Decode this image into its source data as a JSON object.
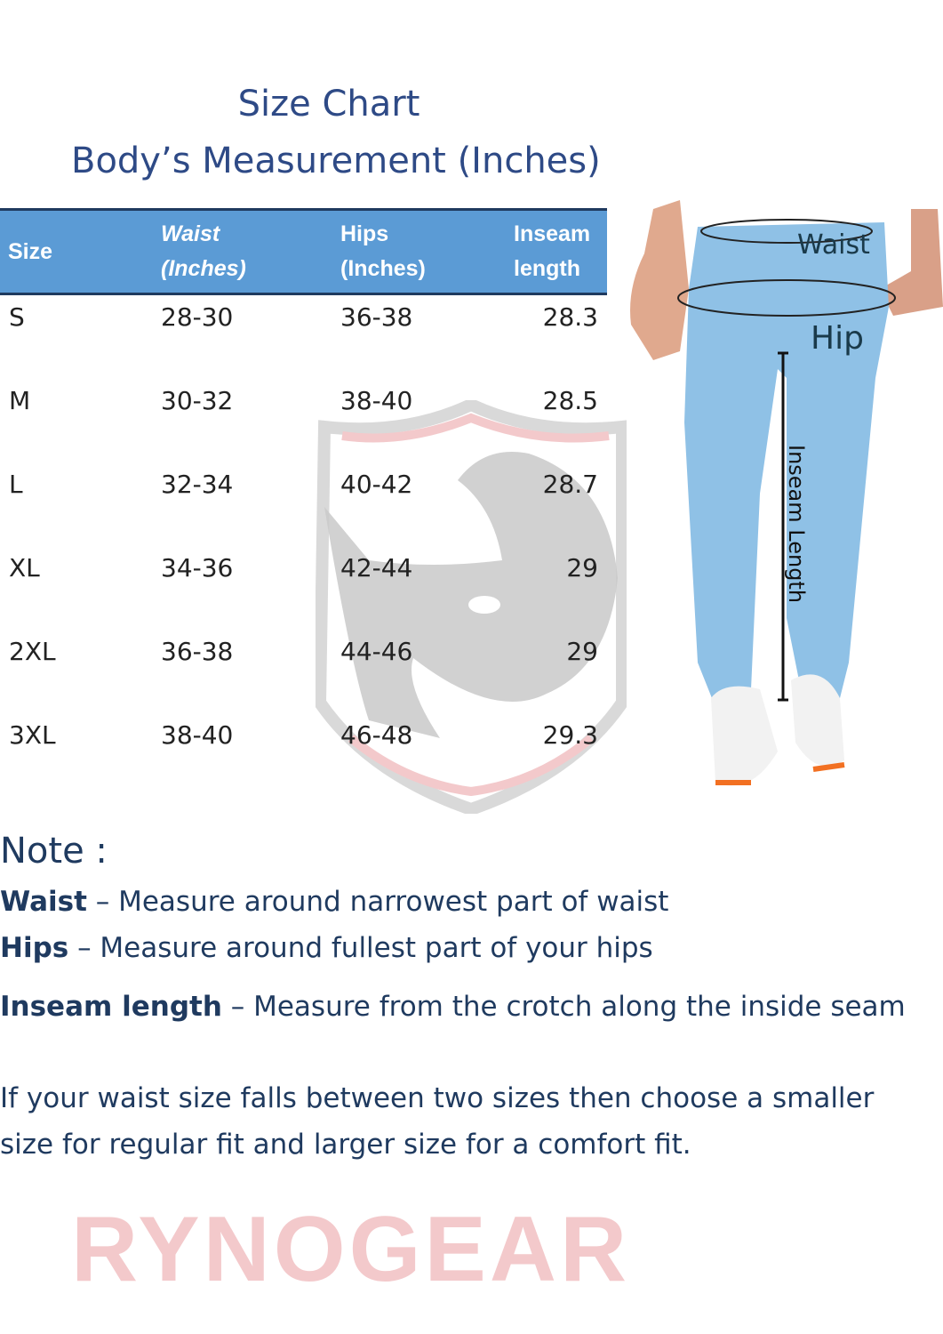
{
  "title": "Size Chart",
  "subtitle": "Body’s Measurement (Inches)",
  "colors": {
    "header_bg": "#5b9bd5",
    "text": "#1f3a5f",
    "title": "#2e4a86",
    "watermark": "#f3c9cb"
  },
  "watermark": {
    "brand": "RYNOGEAR",
    "icon": "rhino-shield-icon"
  },
  "table": {
    "headers": {
      "size": "Size",
      "waist_1": "Waist",
      "waist_2": "(Inches)",
      "hips_1": "Hips",
      "hips_2": "(Inches)",
      "inseam_1": "Inseam",
      "inseam_2": "length"
    },
    "rows": [
      {
        "size": "S",
        "waist": "28-30",
        "hips": "36-38",
        "inseam": "28.3"
      },
      {
        "size": "M",
        "waist": "30-32",
        "hips": "38-40",
        "inseam": "28.5"
      },
      {
        "size": "L",
        "waist": "32-34",
        "hips": "40-42",
        "inseam": "28.7"
      },
      {
        "size": "XL",
        "waist": "34-36",
        "hips": "42-44",
        "inseam": "29"
      },
      {
        "size": "2XL",
        "waist": "36-38",
        "hips": "44-46",
        "inseam": "29"
      },
      {
        "size": "3XL",
        "waist": "38-40",
        "hips": "46-48",
        "inseam": "29.3"
      }
    ]
  },
  "diagram": {
    "waist": "Waist",
    "hip": "Hip",
    "inseam": "Inseam Length"
  },
  "notes": {
    "heading": "Note :",
    "items": [
      {
        "term": "Waist",
        "text": " – Measure around narrowest part of waist"
      },
      {
        "term": "Hips",
        "text": " – Measure around fullest part of your hips"
      },
      {
        "term": "Inseam length",
        "text": " – Measure from the crotch along the inside seam"
      }
    ],
    "advice_1": "If your waist size falls between two sizes then choose a smaller",
    "advice_2": "size for regular fit and larger size for a comfort fit."
  }
}
